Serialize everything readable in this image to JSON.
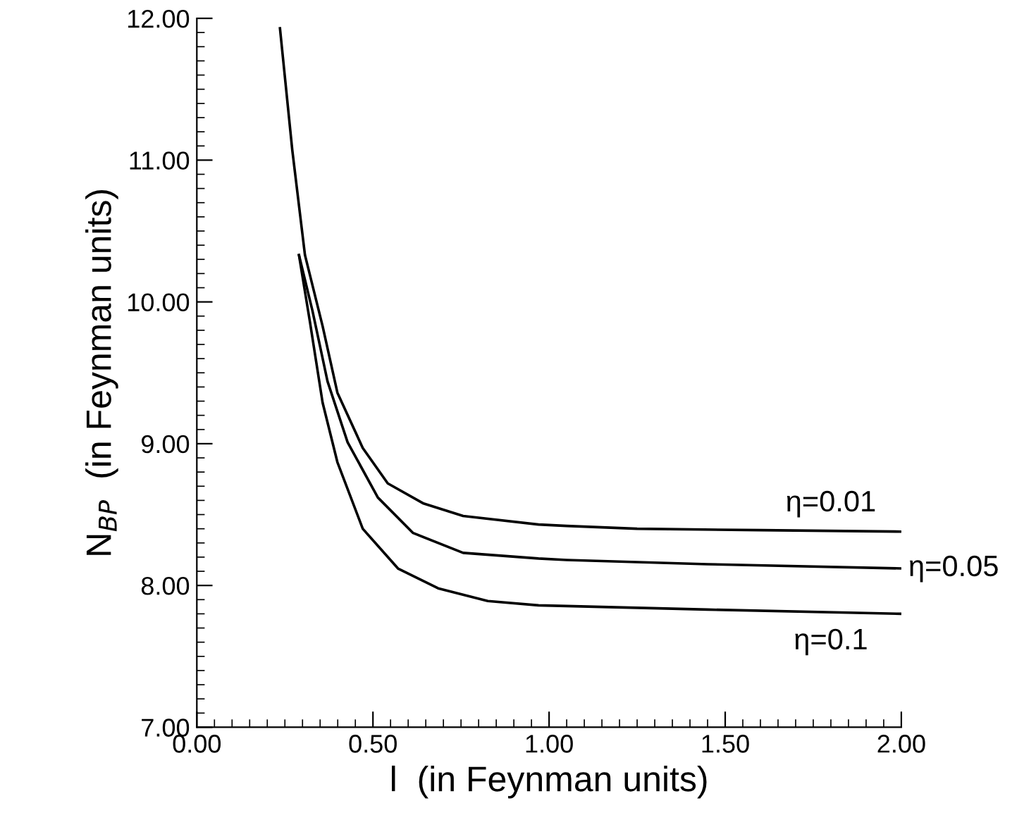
{
  "chart_data": {
    "type": "line",
    "xlabel": "l  (in Feynman units)",
    "ylabel": "N$_{BP}$  (in Feynman units)",
    "xlim": [
      0,
      2
    ],
    "ylim": [
      7,
      12
    ],
    "xticks": [
      {
        "value": 0,
        "label": "0.00"
      },
      {
        "value": 0.5,
        "label": "0.50"
      },
      {
        "value": 1,
        "label": "1.00"
      },
      {
        "value": 1.5,
        "label": "1.50"
      },
      {
        "value": 2,
        "label": "2.00"
      }
    ],
    "yticks": [
      {
        "value": 7,
        "label": "7.00"
      },
      {
        "value": 8,
        "label": "8.00"
      },
      {
        "value": 9,
        "label": "9.00"
      },
      {
        "value": 10,
        "label": "10.00"
      },
      {
        "value": 11,
        "label": "11.00"
      },
      {
        "value": 12,
        "label": "12.00"
      }
    ],
    "grid": false,
    "legend": false,
    "marker": "none",
    "line_style": "solid",
    "series": [
      {
        "name": "η=0.01",
        "color": "#000000",
        "x": [
          0.236,
          0.271,
          0.307,
          0.357,
          0.399,
          0.471,
          0.542,
          0.642,
          0.756,
          0.97,
          1.05,
          1.25,
          1.6,
          2.0
        ],
        "values": [
          11.93,
          11.07,
          10.33,
          9.83,
          9.36,
          8.97,
          8.72,
          8.58,
          8.49,
          8.43,
          8.42,
          8.4,
          8.39,
          8.38
        ]
      },
      {
        "name": "η=0.05",
        "color": "#000000",
        "x": [
          0.29,
          0.328,
          0.371,
          0.428,
          0.514,
          0.614,
          0.756,
          0.97,
          1.05,
          1.45,
          2.0
        ],
        "values": [
          10.33,
          9.94,
          9.44,
          9.01,
          8.62,
          8.37,
          8.23,
          8.19,
          8.18,
          8.15,
          8.12
        ]
      },
      {
        "name": "η=0.1",
        "color": "#000000",
        "x": [
          0.29,
          0.321,
          0.357,
          0.399,
          0.471,
          0.571,
          0.685,
          0.826,
          0.97,
          1.45,
          2.0
        ],
        "values": [
          10.33,
          9.86,
          9.29,
          8.87,
          8.4,
          8.12,
          7.98,
          7.89,
          7.86,
          7.83,
          7.8
        ]
      }
    ]
  }
}
